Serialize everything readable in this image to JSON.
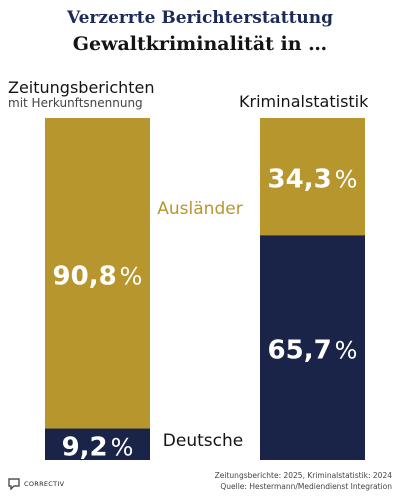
{
  "title": "Verzerrte Berichterstattung",
  "subtitle": "Gewaltkriminalität in …",
  "columns": {
    "left_title": "Zeitungsberichten",
    "left_sub": "mit Herkunftsnennung",
    "right_title": "Kriminalstatistik"
  },
  "footer": {
    "logo_text": "CORRECTIV",
    "source_line1": "Zeitungsberichte: 2025, Kriminalstatistik: 2024",
    "source_line2": "Quelle: Hestermann/Mediendienst Integration"
  },
  "colors": {
    "auslaender": "#b8962e",
    "deutsche": "#1a2448",
    "label_auslaender": "#b8962e",
    "label_deutsche": "#141414"
  },
  "chart_data": {
    "type": "bar",
    "stacked": true,
    "categories": [
      "Zeitungsberichten",
      "Kriminalstatistik"
    ],
    "series": [
      {
        "name": "Ausländer",
        "values": [
          90.8,
          34.3
        ],
        "labels": [
          "90,8",
          "34,3"
        ]
      },
      {
        "name": "Deutsche",
        "values": [
          9.2,
          65.7
        ],
        "labels": [
          "9,2",
          "65,7"
        ]
      }
    ],
    "unit": "%",
    "ylim": [
      0,
      100
    ]
  }
}
